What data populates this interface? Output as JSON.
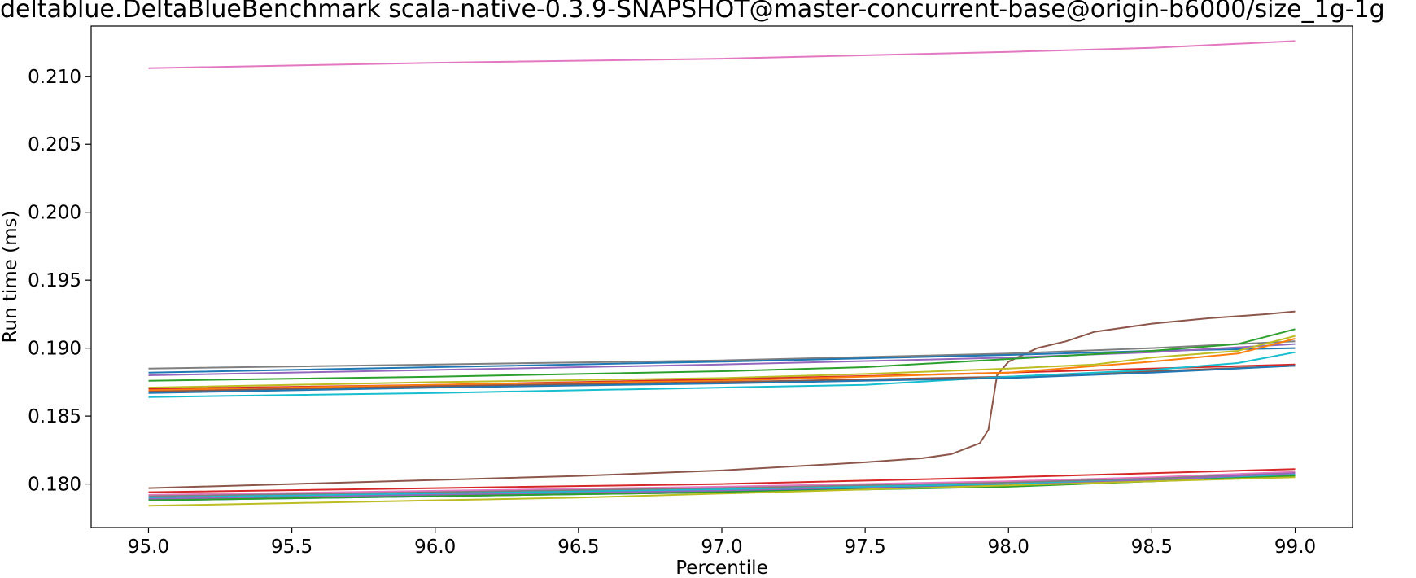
{
  "chart_data": {
    "type": "line",
    "title": "deltablue.DeltaBlueBenchmark scala-native-0.3.9-SNAPSHOT@master-concurrent-base@origin-b6000/size_1g-1g",
    "xlabel": "Percentile",
    "ylabel": "Run time (ms)",
    "xlim": [
      94.8,
      99.2
    ],
    "ylim": [
      0.1768,
      0.2137
    ],
    "xticks": [
      "95.0",
      "95.5",
      "96.0",
      "96.5",
      "97.0",
      "97.5",
      "98.0",
      "98.5",
      "99.0"
    ],
    "yticks": [
      "0.180",
      "0.185",
      "0.190",
      "0.195",
      "0.200",
      "0.205",
      "0.210"
    ],
    "grid": false,
    "legend": "none",
    "series": [
      {
        "color": "#e377c2",
        "x": [
          95.0,
          96.0,
          97.0,
          98.0,
          98.5,
          99.0
        ],
        "y": [
          0.2106,
          0.211,
          0.2113,
          0.2118,
          0.2121,
          0.2126
        ]
      },
      {
        "color": "#8c564b",
        "x": [
          95.0,
          95.5,
          96.0,
          96.5,
          97.0,
          97.5,
          97.7,
          97.8,
          97.85,
          97.9,
          97.93,
          97.96,
          98.0,
          98.05,
          98.1,
          98.2,
          98.3,
          98.5,
          98.7,
          98.9,
          99.0
        ],
        "y": [
          0.1797,
          0.18,
          0.1803,
          0.1806,
          0.181,
          0.1816,
          0.1819,
          0.1822,
          0.1826,
          0.183,
          0.184,
          0.188,
          0.189,
          0.1895,
          0.19,
          0.1905,
          0.1912,
          0.1918,
          0.1922,
          0.1925,
          0.1927
        ]
      },
      {
        "color": "#7f7f7f",
        "x": [
          95.0,
          96.0,
          97.0,
          98.0,
          98.5,
          99.0
        ],
        "y": [
          0.1885,
          0.1888,
          0.1891,
          0.1896,
          0.19,
          0.1905
        ]
      },
      {
        "color": "#1f77b4",
        "x": [
          95.0,
          96.0,
          97.0,
          98.0,
          98.5,
          99.0
        ],
        "y": [
          0.1882,
          0.1886,
          0.189,
          0.1895,
          0.1898,
          0.19
        ]
      },
      {
        "color": "#9467bd",
        "x": [
          95.0,
          96.0,
          97.0,
          98.0,
          98.5,
          99.0
        ],
        "y": [
          0.188,
          0.1884,
          0.1888,
          0.1893,
          0.1897,
          0.1903
        ]
      },
      {
        "color": "#2ca02c",
        "x": [
          95.0,
          96.0,
          97.0,
          97.5,
          98.0,
          98.5,
          98.8,
          99.0
        ],
        "y": [
          0.1876,
          0.1879,
          0.1883,
          0.1886,
          0.1892,
          0.1898,
          0.1903,
          0.1914
        ]
      },
      {
        "color": "#bcbd22",
        "x": [
          95.0,
          96.0,
          97.0,
          97.5,
          98.0,
          98.3,
          98.5,
          98.8,
          99.0
        ],
        "y": [
          0.1871,
          0.1875,
          0.1878,
          0.1881,
          0.1885,
          0.1888,
          0.1893,
          0.1898,
          0.1909
        ]
      },
      {
        "color": "#d62728",
        "x": [
          95.0,
          96.0,
          97.0,
          98.0,
          98.5,
          99.0
        ],
        "y": [
          0.187,
          0.1873,
          0.1877,
          0.1882,
          0.1885,
          0.1888
        ]
      },
      {
        "color": "#ff7f0e",
        "x": [
          95.0,
          96.0,
          97.0,
          98.0,
          98.5,
          98.8,
          99.0
        ],
        "y": [
          0.1869,
          0.1873,
          0.1876,
          0.1882,
          0.189,
          0.1896,
          0.1907
        ]
      },
      {
        "color": "#8c564b",
        "x": [
          95.0,
          96.0,
          97.0,
          98.0,
          98.5,
          99.0
        ],
        "y": [
          0.1868,
          0.1872,
          0.1875,
          0.1879,
          0.1883,
          0.1887
        ]
      },
      {
        "color": "#17becf",
        "x": [
          95.0,
          96.0,
          97.0,
          97.5,
          98.0,
          98.5,
          98.8,
          99.0
        ],
        "y": [
          0.1864,
          0.1867,
          0.1871,
          0.1873,
          0.1879,
          0.1884,
          0.1889,
          0.1897
        ]
      },
      {
        "color": "#1f77b4",
        "x": [
          95.0,
          96.0,
          97.0,
          98.0,
          98.5,
          99.0
        ],
        "y": [
          0.1867,
          0.1871,
          0.1874,
          0.1878,
          0.1882,
          0.1887
        ]
      },
      {
        "color": "#d62728",
        "x": [
          95.0,
          96.0,
          97.0,
          98.0,
          98.5,
          99.0
        ],
        "y": [
          0.1794,
          0.1797,
          0.18,
          0.1805,
          0.1808,
          0.1811
        ]
      },
      {
        "color": "#e377c2",
        "x": [
          95.0,
          96.0,
          97.0,
          98.0,
          98.5,
          99.0
        ],
        "y": [
          0.1792,
          0.1795,
          0.1798,
          0.1802,
          0.1805,
          0.1809
        ]
      },
      {
        "color": "#7f7f7f",
        "x": [
          95.0,
          96.0,
          97.0,
          98.0,
          98.5,
          99.0
        ],
        "y": [
          0.1791,
          0.1794,
          0.1797,
          0.1801,
          0.1804,
          0.1808
        ]
      },
      {
        "color": "#17becf",
        "x": [
          95.0,
          96.0,
          97.0,
          98.0,
          98.5,
          99.0
        ],
        "y": [
          0.179,
          0.1793,
          0.1796,
          0.18,
          0.1803,
          0.1807
        ]
      },
      {
        "color": "#9467bd",
        "x": [
          95.0,
          96.0,
          97.0,
          98.0,
          98.5,
          99.0
        ],
        "y": [
          0.1789,
          0.1792,
          0.1795,
          0.1799,
          0.1803,
          0.1808
        ]
      },
      {
        "color": "#1f77b4",
        "x": [
          95.0,
          96.0,
          97.0,
          98.0,
          98.5,
          99.0
        ],
        "y": [
          0.1788,
          0.1791,
          0.1794,
          0.1799,
          0.1802,
          0.1806
        ]
      },
      {
        "color": "#2ca02c",
        "x": [
          95.0,
          96.0,
          97.0,
          98.0,
          98.5,
          99.0
        ],
        "y": [
          0.1788,
          0.1791,
          0.1794,
          0.1798,
          0.1802,
          0.1806
        ]
      },
      {
        "color": "#bcbd22",
        "x": [
          95.0,
          95.5,
          96.0,
          96.5,
          97.0,
          97.5,
          98.0,
          98.5,
          99.0
        ],
        "y": [
          0.1784,
          0.1786,
          0.1788,
          0.179,
          0.1793,
          0.1796,
          0.1799,
          0.1802,
          0.1805
        ]
      }
    ]
  }
}
